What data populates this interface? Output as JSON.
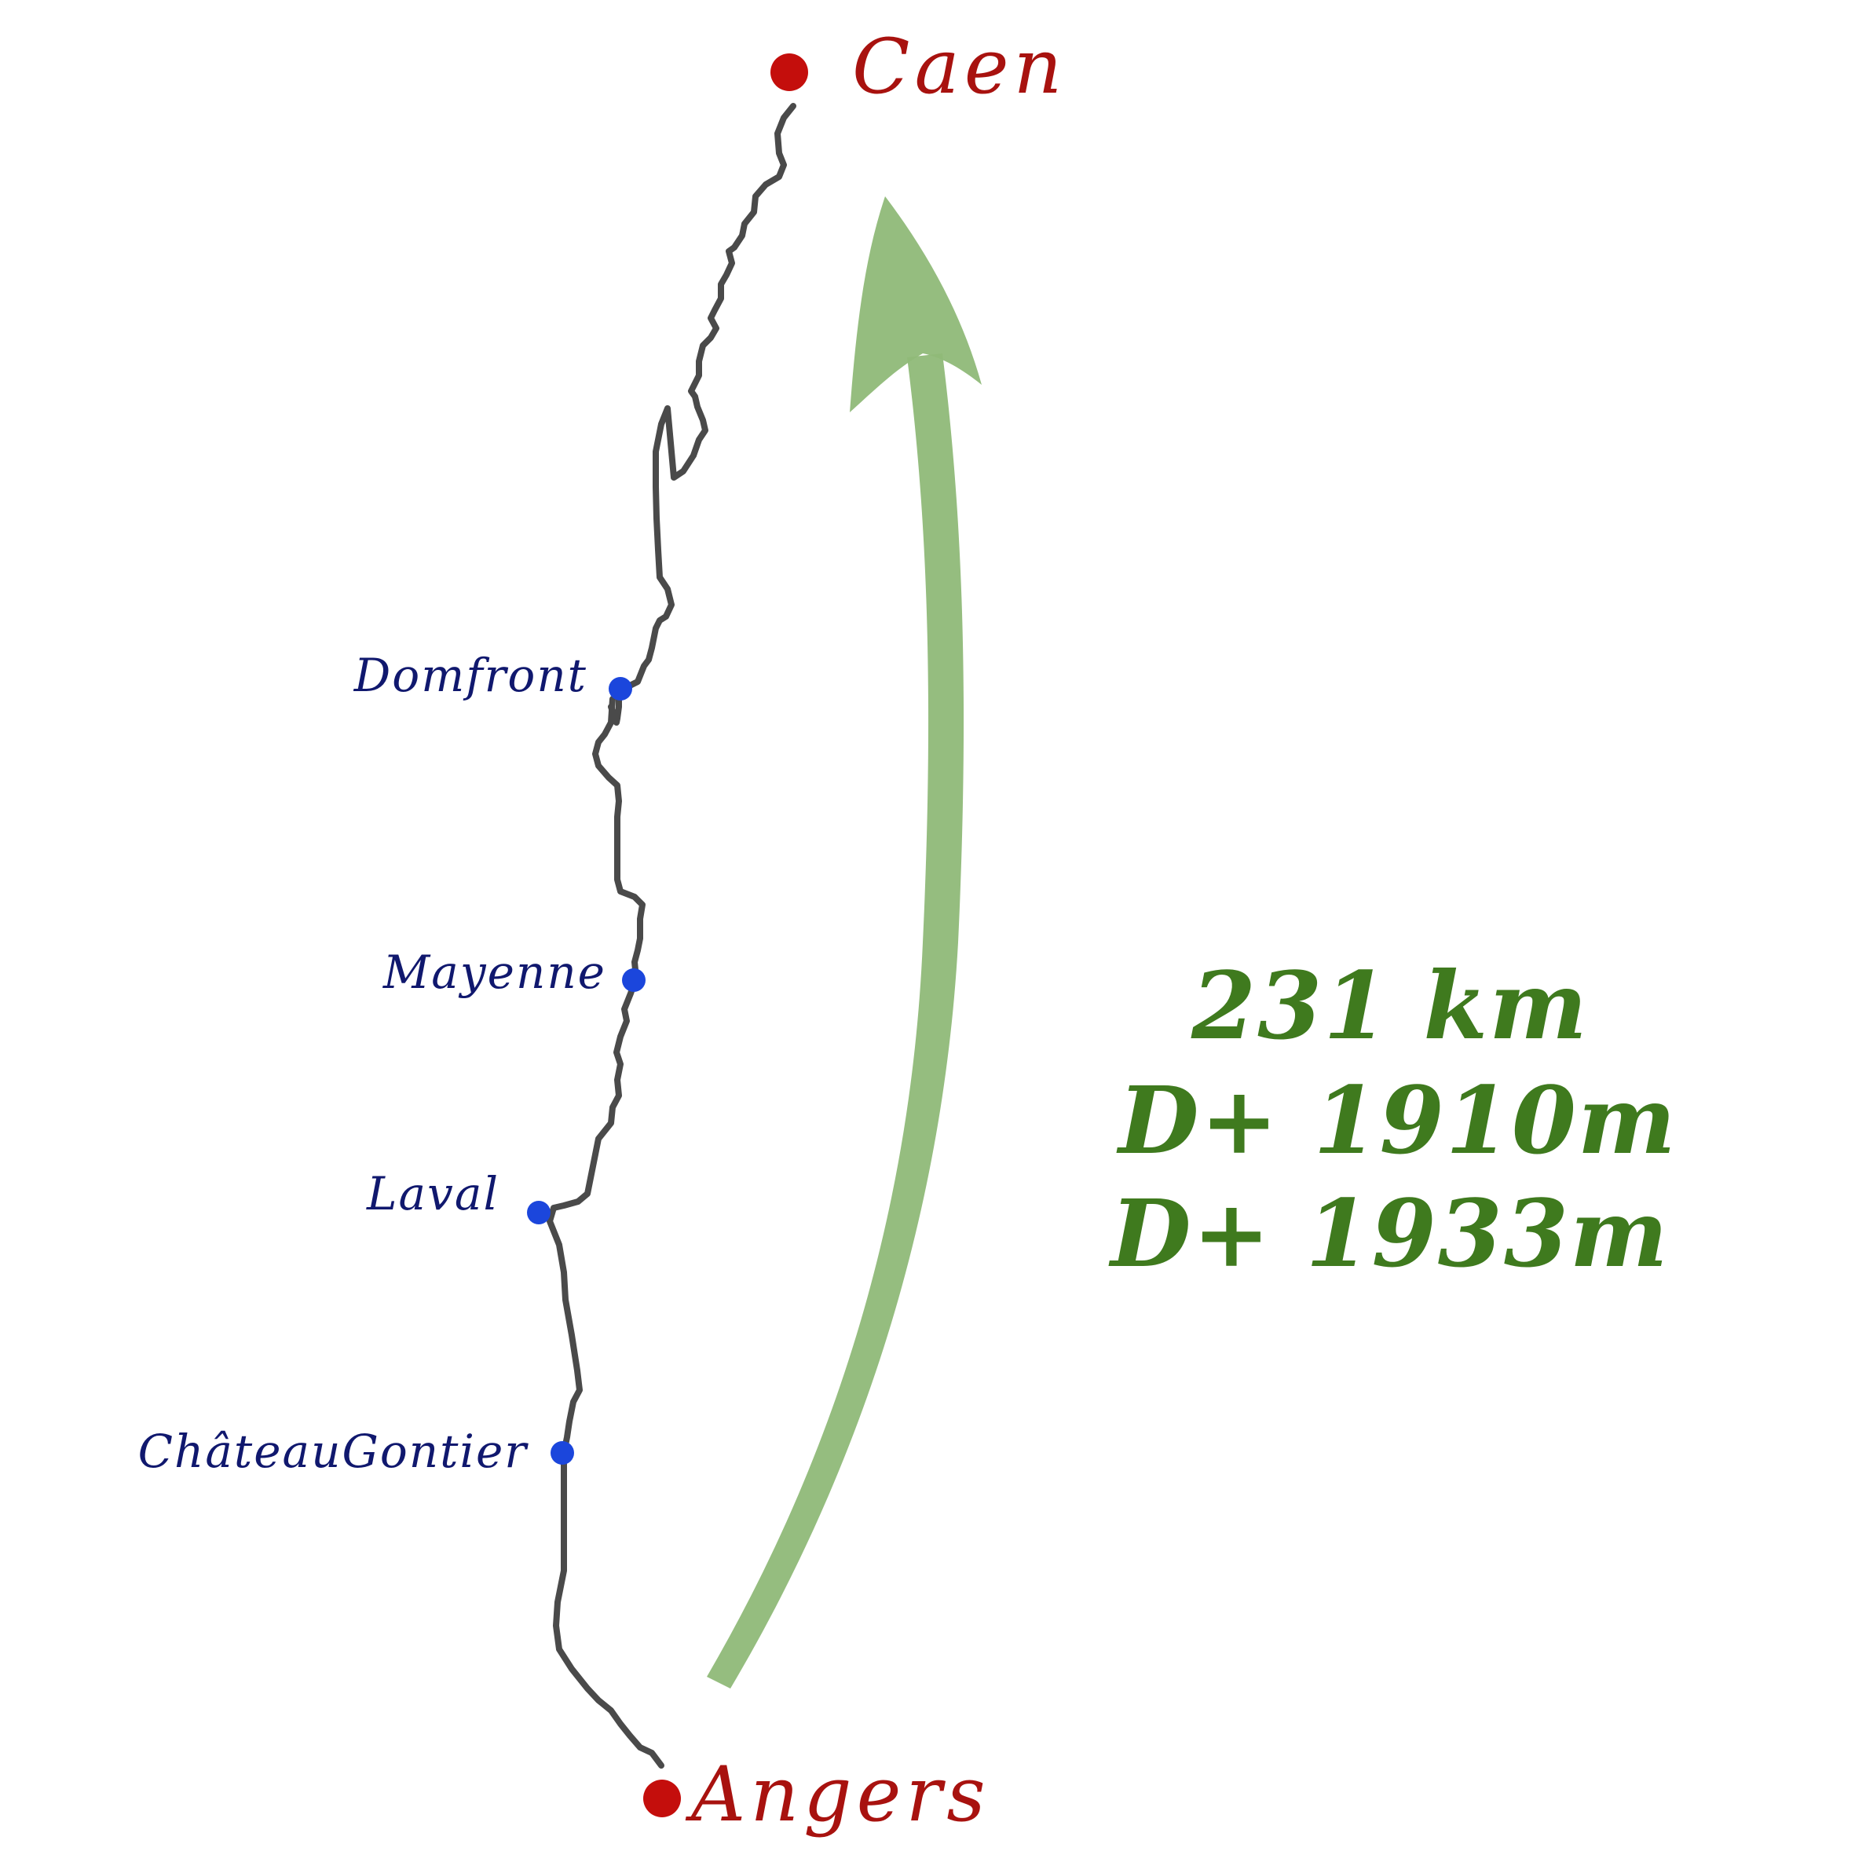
{
  "cities": {
    "start": "Angers",
    "end": "Caen"
  },
  "waypoints": [
    {
      "name": "Domfront"
    },
    {
      "name": "Mayenne"
    },
    {
      "name": "Laval"
    },
    {
      "name": "ChâteauGontier"
    }
  ],
  "stats": {
    "distance": "231 km",
    "ascent_1": "D+ 1910m",
    "ascent_2": "D+ 1933m"
  },
  "colors": {
    "route": "#4a4a4a",
    "major_city": "#c40e0c",
    "minor_city": "#1b46dc",
    "major_label": "#a8120f",
    "minor_label": "#10186e",
    "arrow": "#8fb978",
    "stats_text": "#3f7a1e"
  },
  "icons": {
    "direction": "arrow-up-curved-icon",
    "city_marker": "dot-icon"
  }
}
